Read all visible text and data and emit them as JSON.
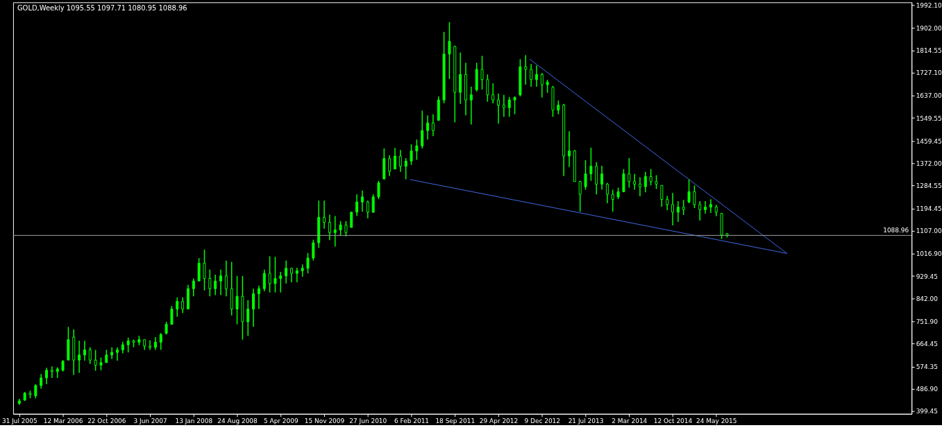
{
  "chart_data": {
    "type": "candlestick",
    "title": "GOLD,Weekly  1095.55 1097.71 1080.95 1088.96",
    "color": "#00ff00",
    "x": [
      "2005-07-31",
      "2005-08-28",
      "2005-09-25",
      "2005-10-23",
      "2005-11-20",
      "2005-12-18",
      "2006-01-15",
      "2006-02-12",
      "2006-03-12",
      "2006-04-09",
      "2006-05-07",
      "2006-06-04",
      "2006-07-02",
      "2006-07-30",
      "2006-08-27",
      "2006-09-24",
      "2006-10-22",
      "2006-11-19",
      "2006-12-17",
      "2007-01-14",
      "2007-02-11",
      "2007-03-11",
      "2007-04-08",
      "2007-05-06",
      "2007-06-03",
      "2007-07-01",
      "2007-07-29",
      "2007-08-26",
      "2007-09-23",
      "2007-10-21",
      "2007-11-18",
      "2007-12-16",
      "2008-01-13",
      "2008-02-10",
      "2008-03-09",
      "2008-04-06",
      "2008-05-04",
      "2008-06-01",
      "2008-06-29",
      "2008-07-27",
      "2008-08-24",
      "2008-09-21",
      "2008-10-19",
      "2008-11-16",
      "2008-12-14",
      "2009-01-11",
      "2009-02-08",
      "2009-03-08",
      "2009-04-05",
      "2009-05-03",
      "2009-05-31",
      "2009-06-28",
      "2009-07-26",
      "2009-08-23",
      "2009-09-20",
      "2009-10-18",
      "2009-11-15",
      "2009-12-13",
      "2010-01-10",
      "2010-02-07",
      "2010-03-07",
      "2010-04-04",
      "2010-05-02",
      "2010-05-30",
      "2010-06-27",
      "2010-07-25",
      "2010-08-22",
      "2010-09-19",
      "2010-10-17",
      "2010-11-14",
      "2010-12-12",
      "2011-01-09",
      "2011-02-06",
      "2011-03-06",
      "2011-04-03",
      "2011-05-01",
      "2011-05-29",
      "2011-06-26",
      "2011-07-24",
      "2011-08-21",
      "2011-09-18",
      "2011-10-16",
      "2011-11-13",
      "2011-12-11",
      "2012-01-08",
      "2012-02-05",
      "2012-03-04",
      "2012-04-01",
      "2012-04-29",
      "2012-05-27",
      "2012-06-24",
      "2012-07-22",
      "2012-08-19",
      "2012-09-16",
      "2012-10-14",
      "2012-11-11",
      "2012-12-09",
      "2013-01-06",
      "2013-02-03",
      "2013-03-03",
      "2013-03-31",
      "2013-04-28",
      "2013-05-26",
      "2013-06-23",
      "2013-07-21",
      "2013-08-18",
      "2013-09-15",
      "2013-10-13",
      "2013-11-10",
      "2013-12-08",
      "2014-01-05",
      "2014-02-02",
      "2014-03-02",
      "2014-03-30",
      "2014-04-27",
      "2014-05-25",
      "2014-06-22",
      "2014-07-20",
      "2014-08-17",
      "2014-09-14",
      "2014-10-12",
      "2014-11-09",
      "2014-12-07",
      "2015-01-04",
      "2015-02-01",
      "2015-03-01",
      "2015-03-29",
      "2015-04-26",
      "2015-05-24",
      "2015-06-21",
      "2015-07-19"
    ],
    "ohlc": [
      [
        430,
        448,
        424,
        440
      ],
      [
        443,
        475,
        440,
        470
      ],
      [
        470,
        480,
        450,
        465
      ],
      [
        460,
        505,
        450,
        500
      ],
      [
        500,
        545,
        488,
        530
      ],
      [
        530,
        570,
        505,
        560
      ],
      [
        560,
        575,
        530,
        555
      ],
      [
        555,
        572,
        530,
        565
      ],
      [
        560,
        600,
        555,
        595
      ],
      [
        600,
        730,
        600,
        680
      ],
      [
        690,
        720,
        542,
        600
      ],
      [
        600,
        676,
        550,
        620
      ],
      [
        620,
        676,
        598,
        640
      ],
      [
        640,
        650,
        585,
        600
      ],
      [
        600,
        640,
        558,
        580
      ],
      [
        580,
        610,
        560,
        590
      ],
      [
        590,
        640,
        590,
        620
      ],
      [
        620,
        650,
        604,
        630
      ],
      [
        630,
        650,
        598,
        640
      ],
      [
        640,
        672,
        626,
        660
      ],
      [
        660,
        688,
        630,
        675
      ],
      [
        675,
        680,
        650,
        670
      ],
      [
        670,
        695,
        658,
        680
      ],
      [
        680,
        680,
        640,
        655
      ],
      [
        655,
        677,
        640,
        650
      ],
      [
        650,
        690,
        640,
        670
      ],
      [
        670,
        706,
        640,
        700
      ],
      [
        705,
        750,
        700,
        740
      ],
      [
        740,
        812,
        740,
        800
      ],
      [
        800,
        846,
        770,
        830
      ],
      [
        830,
        846,
        784,
        800
      ],
      [
        800,
        895,
        800,
        880
      ],
      [
        880,
        920,
        850,
        910
      ],
      [
        910,
        1000,
        910,
        980
      ],
      [
        980,
        1033,
        873,
        920
      ],
      [
        920,
        955,
        850,
        880
      ],
      [
        880,
        935,
        855,
        910
      ],
      [
        910,
        955,
        855,
        930
      ],
      [
        930,
        990,
        850,
        880
      ],
      [
        880,
        985,
        775,
        800
      ],
      [
        800,
        930,
        740,
        850
      ],
      [
        850,
        930,
        680,
        750
      ],
      [
        750,
        835,
        695,
        800
      ],
      [
        800,
        880,
        730,
        860
      ],
      [
        860,
        892,
        800,
        880
      ],
      [
        880,
        955,
        870,
        940
      ],
      [
        940,
        1007,
        865,
        900
      ],
      [
        900,
        1005,
        865,
        920
      ],
      [
        920,
        946,
        865,
        930
      ],
      [
        930,
        990,
        900,
        960
      ],
      [
        960,
        962,
        905,
        940
      ],
      [
        940,
        962,
        905,
        950
      ],
      [
        950,
        975,
        927,
        960
      ],
      [
        960,
        1020,
        940,
        1000
      ],
      [
        1000,
        1072,
        990,
        1060
      ],
      [
        1060,
        1225,
        1040,
        1160
      ],
      [
        1160,
        1225,
        1115,
        1140
      ],
      [
        1140,
        1170,
        1070,
        1100
      ],
      [
        1100,
        1165,
        1045,
        1110
      ],
      [
        1110,
        1145,
        1088,
        1130
      ],
      [
        1130,
        1145,
        1085,
        1100
      ],
      [
        1120,
        1182,
        1120,
        1180
      ],
      [
        1180,
        1250,
        1165,
        1220
      ],
      [
        1220,
        1265,
        1182,
        1240
      ],
      [
        1220,
        1225,
        1156,
        1180
      ],
      [
        1180,
        1250,
        1177,
        1240
      ],
      [
        1240,
        1303,
        1231,
        1295
      ],
      [
        1310,
        1430,
        1310,
        1390
      ],
      [
        1390,
        1403,
        1322,
        1340
      ],
      [
        1349,
        1432,
        1349,
        1400
      ],
      [
        1400,
        1424,
        1338,
        1360
      ],
      [
        1360,
        1392,
        1309,
        1380
      ],
      [
        1380,
        1446,
        1365,
        1420
      ],
      [
        1420,
        1465,
        1385,
        1440
      ],
      [
        1440,
        1578,
        1430,
        1500
      ],
      [
        1500,
        1560,
        1465,
        1530
      ],
      [
        1530,
        1564,
        1478,
        1500
      ],
      [
        1540,
        1634,
        1540,
        1620
      ],
      [
        1620,
        1887,
        1607,
        1800
      ],
      [
        1800,
        1925,
        1702,
        1850
      ],
      [
        1830,
        1833,
        1532,
        1650
      ],
      [
        1650,
        1806,
        1605,
        1720
      ],
      [
        1720,
        1766,
        1560,
        1620
      ],
      [
        1620,
        1672,
        1524,
        1640
      ],
      [
        1660,
        1766,
        1653,
        1740
      ],
      [
        1740,
        1793,
        1661,
        1700
      ],
      [
        1700,
        1720,
        1613,
        1640
      ],
      [
        1640,
        1685,
        1607,
        1620
      ],
      [
        1620,
        1645,
        1527,
        1600
      ],
      [
        1600,
        1640,
        1554,
        1590
      ],
      [
        1590,
        1632,
        1554,
        1620
      ],
      [
        1620,
        1634,
        1564,
        1630
      ],
      [
        1640,
        1780,
        1634,
        1750
      ],
      [
        1750,
        1796,
        1680,
        1740
      ],
      [
        1740,
        1761,
        1672,
        1700
      ],
      [
        1700,
        1755,
        1672,
        1720
      ],
      [
        1720,
        1726,
        1630,
        1680
      ],
      [
        1680,
        1699,
        1648,
        1690
      ],
      [
        1670,
        1675,
        1554,
        1580
      ],
      [
        1580,
        1618,
        1564,
        1600
      ],
      [
        1600,
        1605,
        1322,
        1400
      ],
      [
        1400,
        1497,
        1357,
        1420
      ],
      [
        1420,
        1424,
        1300,
        1300
      ],
      [
        1300,
        1303,
        1182,
        1250
      ],
      [
        1280,
        1384,
        1268,
        1330
      ],
      [
        1330,
        1433,
        1303,
        1360
      ],
      [
        1360,
        1376,
        1250,
        1290
      ],
      [
        1290,
        1362,
        1268,
        1330
      ],
      [
        1290,
        1295,
        1215,
        1250
      ],
      [
        1250,
        1268,
        1182,
        1230
      ],
      [
        1240,
        1276,
        1231,
        1260
      ],
      [
        1260,
        1349,
        1258,
        1330
      ],
      [
        1330,
        1392,
        1276,
        1300
      ],
      [
        1300,
        1330,
        1268,
        1290
      ],
      [
        1290,
        1317,
        1242,
        1280
      ],
      [
        1280,
        1338,
        1258,
        1320
      ],
      [
        1320,
        1349,
        1285,
        1300
      ],
      [
        1300,
        1325,
        1271,
        1290
      ],
      [
        1285,
        1285,
        1201,
        1230
      ],
      [
        1230,
        1244,
        1188,
        1210
      ],
      [
        1210,
        1255,
        1128,
        1180
      ],
      [
        1180,
        1223,
        1142,
        1200
      ],
      [
        1200,
        1228,
        1169,
        1190
      ],
      [
        1220,
        1309,
        1215,
        1260
      ],
      [
        1260,
        1285,
        1196,
        1210
      ],
      [
        1210,
        1223,
        1147,
        1190
      ],
      [
        1190,
        1223,
        1174,
        1200
      ],
      [
        1200,
        1231,
        1177,
        1210
      ],
      [
        1200,
        1209,
        1164,
        1180
      ],
      [
        1175,
        1177,
        1075,
        1090
      ],
      [
        1095.55,
        1097.71,
        1080.95,
        1088.96
      ]
    ],
    "series": [
      {
        "type": "line",
        "color": "#4169e1",
        "x": [
          "2012-10-07",
          "2016-05-22"
        ],
        "values": [
          1780,
          1018
        ]
      },
      {
        "type": "line",
        "color": "#4169e1",
        "x": [
          "2011-01-30",
          "2016-05-22"
        ],
        "values": [
          1308,
          1018
        ]
      }
    ],
    "ref_lines": [
      {
        "axis": "y",
        "value": 1088.96,
        "label": "1088.96",
        "color": "#a0a0a0"
      }
    ],
    "xlim": [
      "2005-07-17",
      "2018-02-04"
    ],
    "ylim": [
      389,
      2003
    ],
    "xticks": [
      {
        "value": "2005-07-31",
        "label": "31 Jul 2005"
      },
      {
        "value": "2006-03-12",
        "label": "12 Mar 2006"
      },
      {
        "value": "2006-10-22",
        "label": "22 Oct 2006"
      },
      {
        "value": "2007-06-03",
        "label": "3 Jun 2007"
      },
      {
        "value": "2008-01-13",
        "label": "13 Jan 2008"
      },
      {
        "value": "2008-08-24",
        "label": "24 Aug 2008"
      },
      {
        "value": "2009-04-05",
        "label": "5 Apr 2009"
      },
      {
        "value": "2009-11-15",
        "label": "15 Nov 2009"
      },
      {
        "value": "2010-06-27",
        "label": "27 Jun 2010"
      },
      {
        "value": "2011-02-06",
        "label": "6 Feb 2011"
      },
      {
        "value": "2011-09-18",
        "label": "18 Sep 2011"
      },
      {
        "value": "2012-04-29",
        "label": "29 Apr 2012"
      },
      {
        "value": "2012-12-09",
        "label": "9 Dec 2012"
      },
      {
        "value": "2013-07-21",
        "label": "21 Jul 2013"
      },
      {
        "value": "2014-03-02",
        "label": "2 Mar 2014"
      },
      {
        "value": "2014-10-12",
        "label": "12 Oct 2014"
      },
      {
        "value": "2015-05-24",
        "label": "24 May 2015"
      }
    ],
    "yticks": [
      399.45,
      {
        "value": 486.9,
        "label": "486.90"
      },
      574.35,
      664.45,
      {
        "value": 751.9,
        "label": "751.90"
      },
      {
        "value": 842,
        "label": "842.00"
      },
      929.45,
      {
        "value": 1016.9,
        "label": "1016.90"
      },
      {
        "value": 1107,
        "label": "1107.00"
      },
      1194.45,
      1284.55,
      {
        "value": 1372,
        "label": "1372.00"
      },
      1459.45,
      1549.55,
      {
        "value": 1637,
        "label": "1637.00"
      },
      {
        "value": 1727.1,
        "label": "1727.10"
      },
      1814.55,
      {
        "value": 1902,
        "label": "1902.00"
      },
      {
        "value": 1992.1,
        "label": "1992.10"
      }
    ],
    "grid": false
  }
}
